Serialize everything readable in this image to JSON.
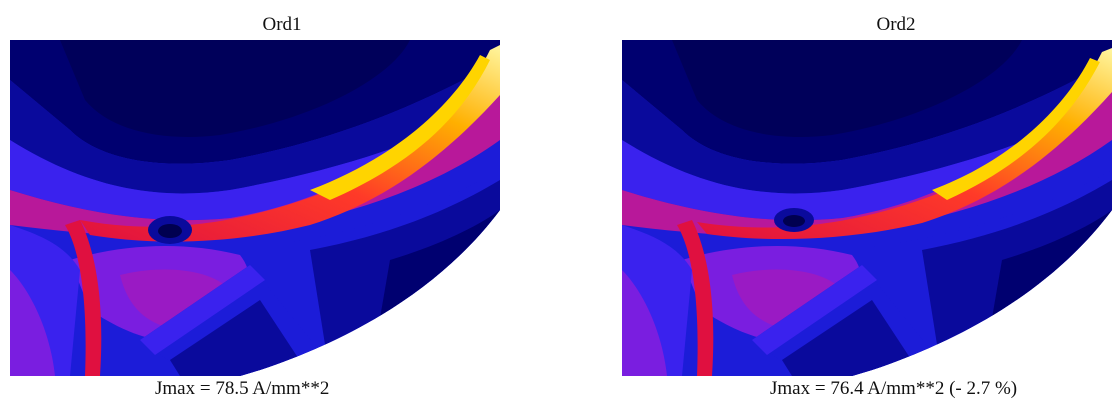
{
  "panels": [
    {
      "title": "Ord1",
      "caption": "Jmax = 78.5 A/mm**2",
      "colors": {
        "dark": "#000070",
        "navy": "#0a0a9c",
        "blue": "#1c1cd8",
        "blue2": "#3a22ee",
        "violet": "#7a1ee0",
        "magenta": "#b8189a",
        "red": "#e01040",
        "orange": "#ff5a18",
        "yellow": "#ffd400",
        "white_hot": "#fff6a0"
      }
    },
    {
      "title": "Ord2",
      "caption": "Jmax = 76.4 A/mm**2  (- 2.7 %)",
      "colors": {
        "dark": "#000070",
        "navy": "#0a0a9c",
        "blue": "#1c1cd8",
        "blue2": "#3a22ee",
        "violet": "#7a1ee0",
        "magenta": "#b8189a",
        "red": "#e01040",
        "orange": "#ff5a18",
        "yellow": "#ffd400",
        "white_hot": "#fff6a0"
      }
    }
  ]
}
